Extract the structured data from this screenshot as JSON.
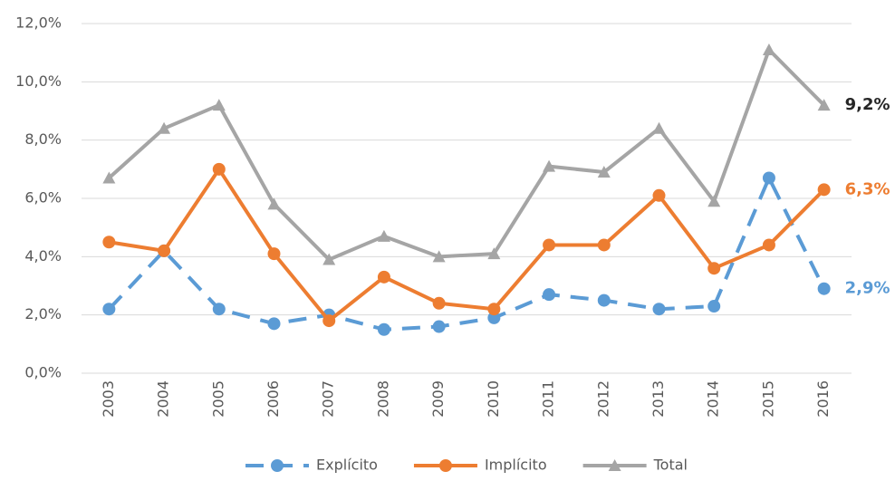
{
  "chart_data": {
    "type": "line",
    "categories": [
      "2003",
      "2004",
      "2005",
      "2006",
      "2007",
      "2008",
      "2009",
      "2010",
      "2011",
      "2012",
      "2013",
      "2014",
      "2015",
      "2016"
    ],
    "series": [
      {
        "name": "Explícito",
        "color": "#5b9bd5",
        "marker": "circle",
        "dashed": true,
        "values": [
          2.2,
          4.2,
          2.2,
          1.7,
          2.0,
          1.5,
          1.6,
          1.9,
          2.7,
          2.5,
          2.2,
          2.3,
          6.7,
          2.9
        ],
        "value_labels": [
          null,
          null,
          null,
          null,
          null,
          null,
          null,
          null,
          null,
          null,
          null,
          null,
          null,
          "2,9%"
        ]
      },
      {
        "name": "Implícito",
        "color": "#ed7d31",
        "marker": "circle",
        "dashed": false,
        "values": [
          4.5,
          4.2,
          7.0,
          4.1,
          1.8,
          3.3,
          2.4,
          2.2,
          4.4,
          4.4,
          6.1,
          3.6,
          4.4,
          6.3
        ],
        "value_labels": [
          null,
          null,
          null,
          null,
          null,
          null,
          null,
          null,
          null,
          null,
          null,
          null,
          null,
          "6,3%"
        ]
      },
      {
        "name": "Total",
        "color": "#a5a5a5",
        "marker": "triangle",
        "dashed": false,
        "values": [
          6.7,
          8.4,
          9.2,
          5.8,
          3.9,
          4.7,
          4.0,
          4.1,
          7.1,
          6.9,
          8.4,
          5.9,
          11.1,
          9.2
        ],
        "value_labels": [
          null,
          null,
          null,
          null,
          null,
          null,
          null,
          null,
          null,
          null,
          null,
          null,
          null,
          "9,2%"
        ],
        "label_color": "#262626"
      }
    ],
    "ylim": [
      0,
      12
    ],
    "yticks": [
      {
        "value": 0,
        "label": "0,0%"
      },
      {
        "value": 2,
        "label": "2,0%"
      },
      {
        "value": 4,
        "label": "4,0%"
      },
      {
        "value": 6,
        "label": "6,0%"
      },
      {
        "value": 8,
        "label": "8,0%"
      },
      {
        "value": 10,
        "label": "10,0%"
      },
      {
        "value": 12,
        "label": "12,0%"
      }
    ],
    "grid": true,
    "legend": "bottom"
  }
}
